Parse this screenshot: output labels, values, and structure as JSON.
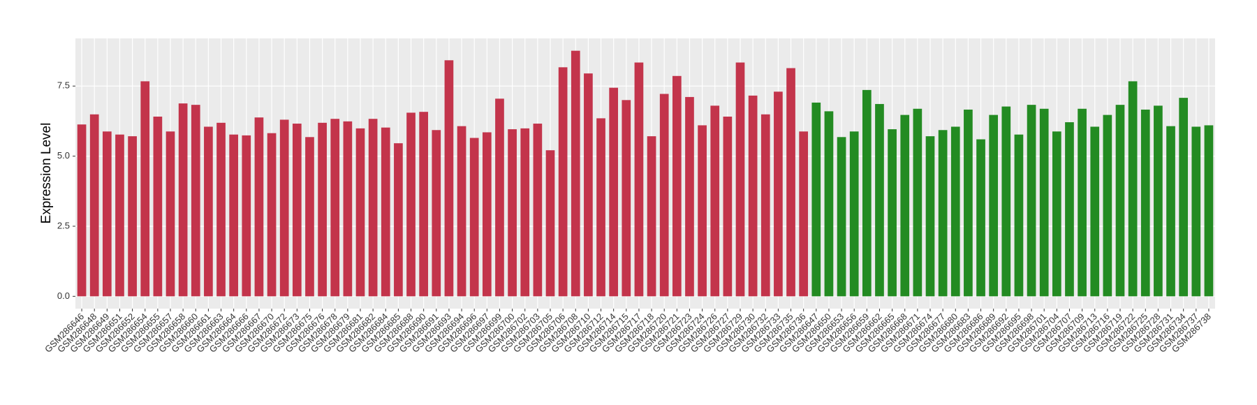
{
  "chart_data": {
    "type": "bar",
    "y_label": "Expression Level",
    "categories": [
      "GSM286646",
      "GSM286648",
      "GSM286649",
      "GSM286651",
      "GSM286652",
      "GSM286654",
      "GSM286655",
      "GSM286657",
      "GSM286658",
      "GSM286660",
      "GSM286661",
      "GSM286663",
      "GSM286664",
      "GSM286666",
      "GSM286667",
      "GSM286670",
      "GSM286672",
      "GSM286673",
      "GSM286675",
      "GSM286676",
      "GSM286678",
      "GSM286679",
      "GSM286681",
      "GSM286682",
      "GSM286684",
      "GSM286685",
      "GSM286688",
      "GSM286690",
      "GSM286691",
      "GSM286693",
      "GSM286694",
      "GSM286696",
      "GSM286697",
      "GSM286699",
      "GSM286700",
      "GSM286702",
      "GSM286703",
      "GSM286705",
      "GSM286706",
      "GSM286708",
      "GSM286710",
      "GSM286712",
      "GSM286714",
      "GSM286715",
      "GSM286717",
      "GSM286718",
      "GSM286720",
      "GSM286721",
      "GSM286723",
      "GSM286724",
      "GSM286726",
      "GSM286727",
      "GSM286729",
      "GSM286730",
      "GSM286732",
      "GSM286733",
      "GSM286735",
      "GSM286736",
      "GSM286647",
      "GSM286650",
      "GSM286653",
      "GSM286656",
      "GSM286659",
      "GSM286662",
      "GSM286665",
      "GSM286668",
      "GSM286671",
      "GSM286674",
      "GSM286677",
      "GSM286680",
      "GSM286683",
      "GSM286686",
      "GSM286689",
      "GSM286692",
      "GSM286695",
      "GSM286698",
      "GSM286701",
      "GSM286704",
      "GSM286707",
      "GSM286709",
      "GSM286713",
      "GSM286716",
      "GSM286719",
      "GSM286722",
      "GSM286725",
      "GSM286728",
      "GSM286731",
      "GSM286734",
      "GSM286737",
      "GSM286738"
    ],
    "values": [
      6.13,
      6.49,
      5.88,
      5.77,
      5.71,
      7.67,
      6.41,
      5.88,
      6.88,
      6.83,
      6.05,
      6.19,
      5.77,
      5.74,
      6.38,
      5.82,
      6.3,
      6.16,
      5.68,
      6.19,
      6.33,
      6.24,
      5.99,
      6.33,
      6.02,
      5.46,
      6.55,
      6.58,
      5.93,
      8.42,
      6.07,
      5.65,
      5.85,
      7.05,
      5.96,
      5.99,
      6.16,
      5.21,
      8.17,
      8.76,
      7.95,
      6.35,
      7.44,
      7.0,
      8.34,
      5.71,
      7.22,
      7.86,
      7.11,
      6.1,
      6.8,
      6.41,
      8.34,
      7.16,
      6.49,
      7.3,
      8.14,
      5.88,
      6.91,
      6.6,
      5.68,
      5.88,
      7.36,
      6.86,
      5.96,
      6.47,
      6.69,
      5.71,
      5.93,
      6.05,
      6.66,
      5.6,
      6.47,
      6.77,
      5.77,
      6.83,
      6.69,
      5.88,
      6.21,
      6.69,
      6.05,
      6.47,
      6.83,
      7.67,
      6.66,
      6.8,
      6.07,
      7.08,
      6.05,
      6.1
    ],
    "colors": [
      "#c3344b",
      "#c3344b",
      "#c3344b",
      "#c3344b",
      "#c3344b",
      "#c3344b",
      "#c3344b",
      "#c3344b",
      "#c3344b",
      "#c3344b",
      "#c3344b",
      "#c3344b",
      "#c3344b",
      "#c3344b",
      "#c3344b",
      "#c3344b",
      "#c3344b",
      "#c3344b",
      "#c3344b",
      "#c3344b",
      "#c3344b",
      "#c3344b",
      "#c3344b",
      "#c3344b",
      "#c3344b",
      "#c3344b",
      "#c3344b",
      "#c3344b",
      "#c3344b",
      "#c3344b",
      "#c3344b",
      "#c3344b",
      "#c3344b",
      "#c3344b",
      "#c3344b",
      "#c3344b",
      "#c3344b",
      "#c3344b",
      "#c3344b",
      "#c3344b",
      "#c3344b",
      "#c3344b",
      "#c3344b",
      "#c3344b",
      "#c3344b",
      "#c3344b",
      "#c3344b",
      "#c3344b",
      "#c3344b",
      "#c3344b",
      "#c3344b",
      "#c3344b",
      "#c3344b",
      "#c3344b",
      "#c3344b",
      "#c3344b",
      "#c3344b",
      "#c3344b",
      "#238b22",
      "#238b22",
      "#238b22",
      "#238b22",
      "#238b22",
      "#238b22",
      "#238b22",
      "#238b22",
      "#238b22",
      "#238b22",
      "#238b22",
      "#238b22",
      "#238b22",
      "#238b22",
      "#238b22",
      "#238b22",
      "#238b22",
      "#238b22",
      "#238b22",
      "#238b22",
      "#238b22",
      "#238b22",
      "#238b22",
      "#238b22",
      "#238b22",
      "#238b22",
      "#238b22",
      "#238b22",
      "#238b22",
      "#238b22",
      "#238b22",
      "#238b22"
    ],
    "ylim": [
      -0.44,
      9.2
    ],
    "yticks": [
      {
        "value": 0,
        "label": "0.0"
      },
      2.5,
      {
        "value": 5,
        "label": "5.0"
      },
      7.5
    ],
    "grid": true
  }
}
